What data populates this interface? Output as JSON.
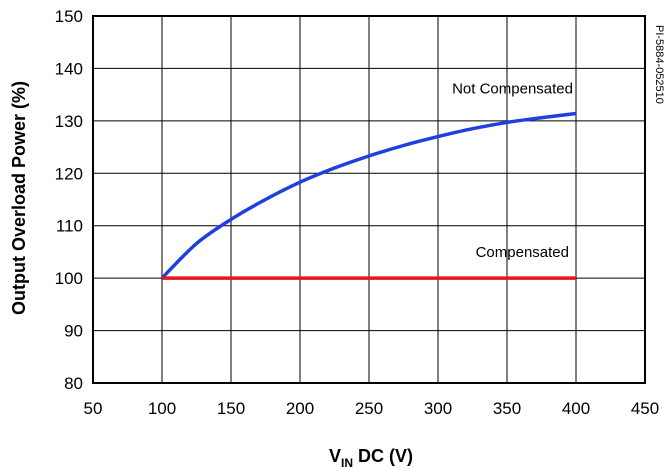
{
  "chart_data": {
    "type": "line",
    "title": "",
    "xlabel_main": "V",
    "xlabel_sub": "IN",
    "xlabel_rest": " DC (V)",
    "ylabel": "Output Overload Power (%)",
    "xlim": [
      50,
      450
    ],
    "ylim": [
      80,
      150
    ],
    "xticks": [
      50,
      100,
      150,
      200,
      250,
      300,
      350,
      400,
      450
    ],
    "yticks": [
      80,
      90,
      100,
      110,
      120,
      130,
      140,
      150
    ],
    "grid": true,
    "doc_code": "PI-5884-052510",
    "series": [
      {
        "name": "Not Compensated",
        "color": "#1f3fe0",
        "x": [
          100,
          125,
          150,
          175,
          200,
          225,
          250,
          275,
          300,
          325,
          350,
          375,
          400
        ],
        "y": [
          100,
          106.6,
          111.2,
          115,
          118.3,
          121,
          123.3,
          125.3,
          127,
          128.5,
          129.7,
          130.6,
          131.4
        ]
      },
      {
        "name": "Compensated",
        "color": "#e8141c",
        "x": [
          100,
          400
        ],
        "y": [
          100,
          100
        ]
      }
    ]
  }
}
